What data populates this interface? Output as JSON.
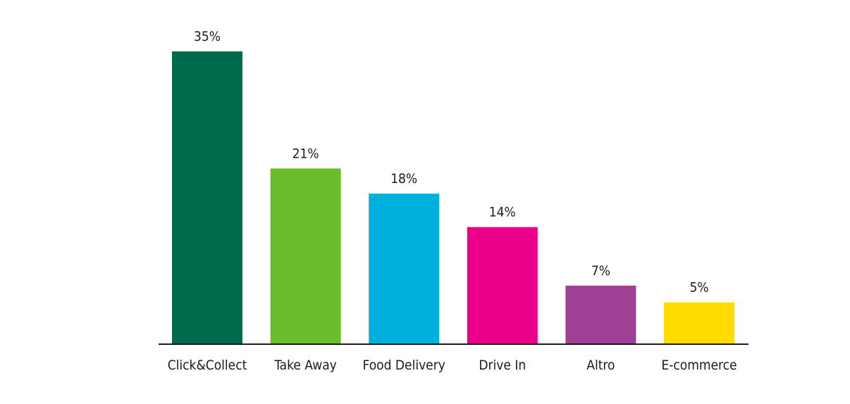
{
  "chart_data": {
    "type": "bar",
    "categories": [
      "Click&Collect",
      "Take Away",
      "Food Delivery",
      "Drive In",
      "Altro",
      "E-commerce"
    ],
    "values": [
      35,
      21,
      18,
      14,
      7,
      5
    ],
    "value_labels": [
      "35%",
      "21%",
      "18%",
      "14%",
      "7%",
      "5%"
    ],
    "colors": [
      "#006B4C",
      "#6BBE2B",
      "#00B0DC",
      "#EA0089",
      "#A04094",
      "#FFDB00"
    ],
    "ylim": [
      0,
      35
    ],
    "grid": false,
    "legend": "none"
  }
}
